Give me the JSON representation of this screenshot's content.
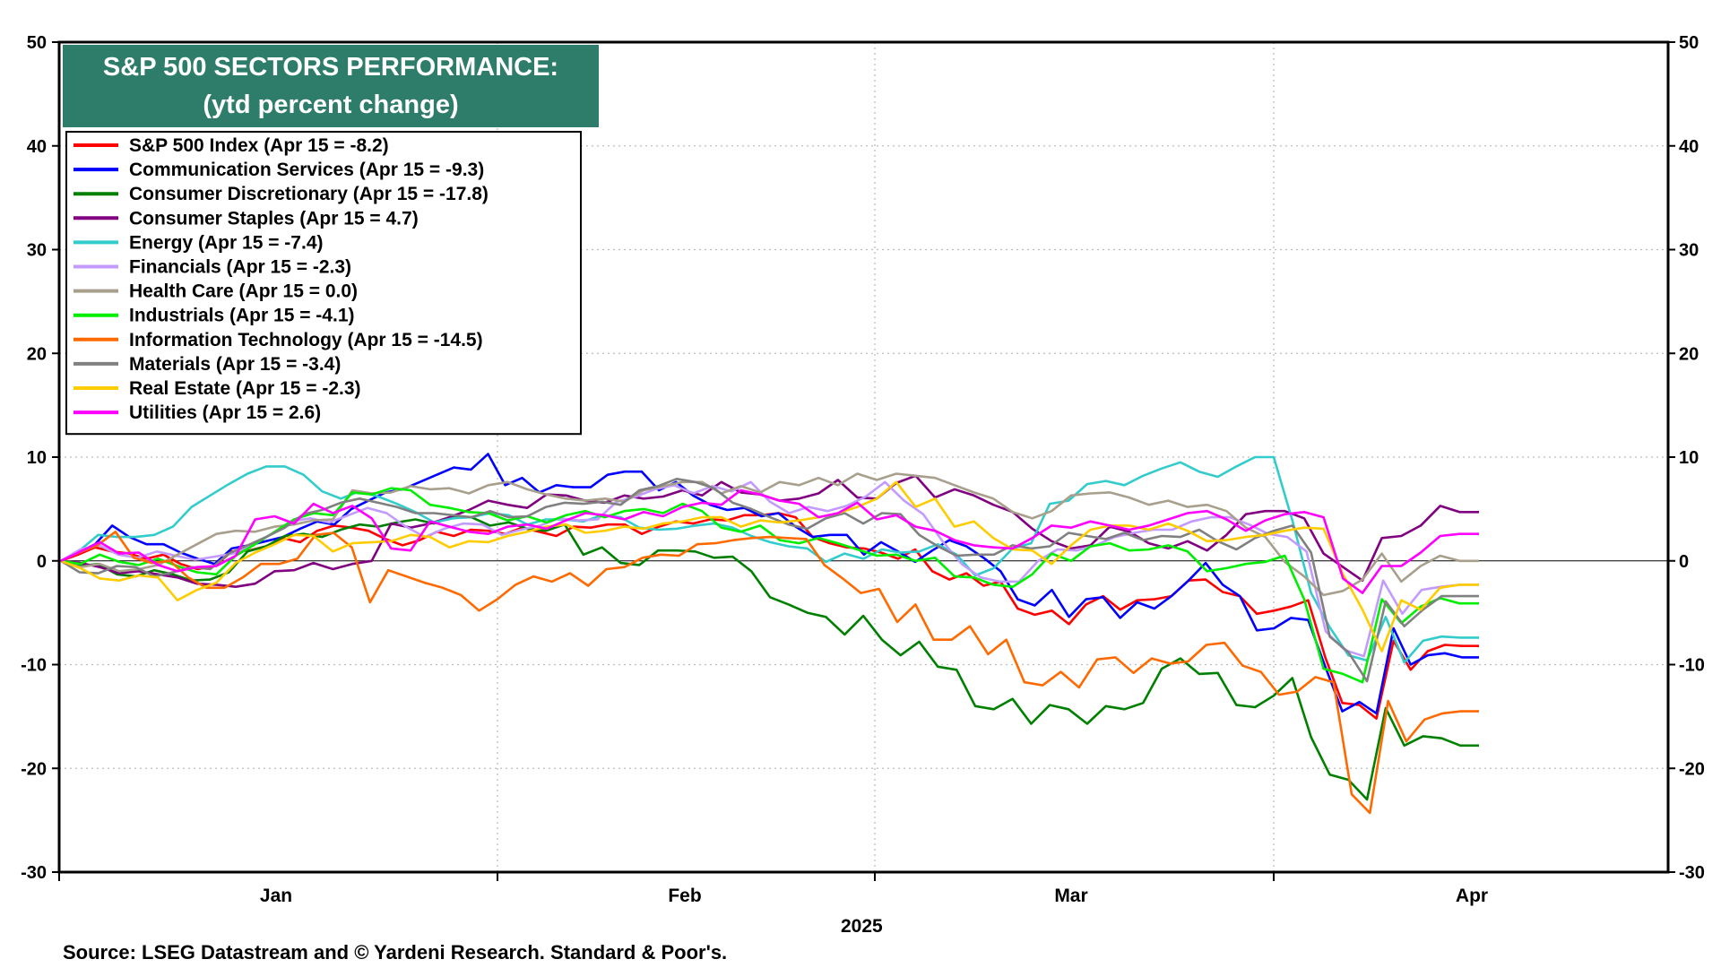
{
  "chart_data": {
    "type": "line",
    "title_line1": "S&P 500 SECTORS PERFORMANCE:",
    "title_line2": "(ytd percent change)",
    "source": "Source: LSEG Datastream and © Yardeni Research. Standard & Poor's.",
    "xlabel": "2025",
    "month_labels": [
      "Jan",
      "Feb",
      "Mar",
      "Apr"
    ],
    "ylim": [
      -30,
      50
    ],
    "yticks": [
      -30,
      -20,
      -10,
      0,
      10,
      20,
      30,
      40,
      50
    ],
    "grid": true,
    "legend_position": "top-left",
    "zero_line": true,
    "series": [
      {
        "name": "S&P 500 Index (Apr 15 = -8.2)",
        "color": "#ff0000",
        "values": [
          0,
          0.6,
          1.3,
          0.9,
          0.7,
          0.2,
          0.6,
          -0.3,
          -0.8,
          -0.5,
          0.9,
          1.0,
          1.4,
          2.2,
          1.8,
          2.9,
          3.4,
          3.2,
          2.9,
          2.1,
          1.5,
          2.0,
          2.8,
          2.4,
          3.0,
          2.9,
          2.6,
          3.2,
          2.8,
          2.4,
          3.3,
          3.2,
          3.5,
          3.5,
          2.6,
          3.3,
          3.8,
          3.6,
          4.0,
          3.9,
          4.4,
          4.4,
          4.6,
          4.2,
          2.3,
          1.7,
          1.3,
          1.2,
          0.8,
          0.2,
          1.1,
          -1.0,
          -1.8,
          -1.2,
          -2.4,
          -2.0,
          -4.6,
          -5.2,
          -4.8,
          -6.1,
          -4.2,
          -3.4,
          -4.7,
          -3.8,
          -3.7,
          -3.4,
          -1.9,
          -1.8,
          -3.0,
          -3.4,
          -5.1,
          -4.8,
          -4.4,
          -3.8,
          -9.3,
          -13.7,
          -13.9,
          -15.2,
          -7.7,
          -10.5,
          -8.7,
          -8.1,
          -8.2,
          -8.2
        ]
      },
      {
        "name": "Communication Services (Apr 15 = -9.3)",
        "color": "#0000ff",
        "values": [
          0,
          0.8,
          1.6,
          3.4,
          2.3,
          1.6,
          1.6,
          0.8,
          0.2,
          -0.3,
          1.2,
          1.5,
          1.9,
          2.3,
          3.1,
          3.8,
          3.5,
          5.0,
          5.8,
          6.6,
          6.9,
          7.6,
          8.3,
          9.0,
          8.8,
          10.3,
          7.3,
          8.0,
          6.6,
          7.3,
          7.1,
          7.1,
          8.3,
          8.6,
          8.6,
          6.8,
          7.6,
          6.3,
          5.4,
          4.9,
          5.1,
          4.3,
          4.6,
          3.3,
          2.3,
          2.5,
          2.5,
          0.6,
          1.8,
          0.9,
          -0.1,
          1.0,
          2.0,
          1.4,
          0.3,
          -1.0,
          -3.7,
          -4.3,
          -2.8,
          -5.4,
          -3.7,
          -3.5,
          -5.5,
          -4.0,
          -4.6,
          -3.4,
          -1.9,
          -0.2,
          -2.3,
          -3.4,
          -6.7,
          -6.5,
          -5.5,
          -5.7,
          -10.2,
          -14.5,
          -13.6,
          -14.7,
          -6.5,
          -10.0,
          -9.1,
          -8.9,
          -9.3,
          -9.3
        ]
      },
      {
        "name": "Consumer Discretionary (Apr 15 = -17.8)",
        "color": "#008000",
        "values": [
          0,
          -0.5,
          -0.3,
          -1.3,
          -1.5,
          -0.9,
          -1.3,
          -1.9,
          -1.8,
          -1.1,
          0.9,
          1.4,
          2.4,
          2.6,
          2.3,
          3.0,
          3.5,
          3.3,
          3.7,
          4.0,
          3.6,
          4.3,
          4.2,
          3.4,
          3.7,
          3.1,
          2.9,
          3.5,
          0.6,
          1.3,
          -0.2,
          -0.4,
          1.0,
          1.0,
          0.9,
          0.3,
          0.4,
          -1.0,
          -3.5,
          -4.2,
          -5.0,
          -5.4,
          -7.1,
          -5.3,
          -7.6,
          -9.1,
          -7.8,
          -10.2,
          -10.5,
          -14.0,
          -14.3,
          -13.3,
          -15.7,
          -13.9,
          -14.3,
          -15.7,
          -14.0,
          -14.3,
          -13.7,
          -10.4,
          -9.4,
          -10.9,
          -10.8,
          -13.9,
          -14.1,
          -13.0,
          -11.3,
          -17.0,
          -20.6,
          -21.1,
          -23.0,
          -14.2,
          -17.8,
          -16.9,
          -17.1,
          -17.8,
          -17.8
        ]
      },
      {
        "name": "Consumer Staples (Apr 15 = 4.7)",
        "color": "#800080",
        "values": [
          0,
          -0.2,
          -0.6,
          -1.2,
          -1.0,
          -1.3,
          -1.6,
          -2.2,
          -2.3,
          -2.5,
          -2.2,
          -1.0,
          -0.9,
          -0.2,
          -0.8,
          -0.3,
          0.0,
          3.6,
          3.2,
          3.6,
          4.2,
          4.9,
          5.8,
          5.4,
          5.1,
          6.4,
          6.3,
          5.8,
          5.6,
          6.3,
          6.0,
          6.2,
          6.8,
          6.3,
          7.6,
          6.6,
          6.4,
          5.8,
          6.0,
          6.5,
          7.8,
          6.1,
          6.0,
          7.5,
          8.2,
          6.1,
          6.9,
          6.3,
          5.4,
          4.7,
          3.1,
          1.9,
          1.2,
          1.5,
          3.3,
          2.8,
          1.7,
          1.2,
          1.9,
          1.0,
          2.5,
          4.5,
          4.8,
          4.8,
          4.1,
          0.7,
          -0.6,
          -1.9,
          2.2,
          2.4,
          3.4,
          5.3,
          4.7,
          4.7
        ]
      },
      {
        "name": "Energy (Apr 15 = -7.4)",
        "color": "#33cccc",
        "values": [
          0,
          1.0,
          2.5,
          2.3,
          2.3,
          2.5,
          3.3,
          5.2,
          6.3,
          7.4,
          8.4,
          9.1,
          9.1,
          8.3,
          6.7,
          6.0,
          6.7,
          6.2,
          5.5,
          4.7,
          3.7,
          4.1,
          4.2,
          4.6,
          4.4,
          3.5,
          4.0,
          4.0,
          3.8,
          4.4,
          4.2,
          3.2,
          3.0,
          3.1,
          3.4,
          3.6,
          3.2,
          2.4,
          1.8,
          1.4,
          1.2,
          -0.1,
          0.7,
          0.2,
          1.1,
          0.8,
          0.9,
          1.6,
          0.6,
          -1.4,
          -0.7,
          1.2,
          1.7,
          5.5,
          5.8,
          7.4,
          7.7,
          7.3,
          8.2,
          8.9,
          9.5,
          8.6,
          8.1,
          9.1,
          10.0,
          10.0,
          3.9,
          -3.1,
          -6.4,
          -9.1,
          -9.6,
          -5.4,
          -9.8,
          -7.7,
          -7.3,
          -7.4,
          -7.4
        ]
      },
      {
        "name": "Financials (Apr 15 = -2.3)",
        "color": "#c39bff",
        "values": [
          0,
          1.1,
          1.5,
          0.6,
          0.3,
          0.9,
          0.5,
          0.1,
          0.4,
          0.7,
          1.6,
          2.6,
          3.8,
          4.1,
          3.7,
          4.4,
          5.1,
          4.6,
          3.3,
          2.3,
          3.1,
          3.6,
          3.5,
          2.5,
          3.0,
          3.4,
          4.1,
          3.9,
          4.0,
          5.7,
          6.2,
          6.9,
          7.3,
          6.5,
          7.2,
          6.7,
          7.6,
          5.7,
          4.6,
          5.2,
          4.8,
          5.3,
          6.2,
          7.6,
          5.8,
          4.5,
          1.9,
          -0.3,
          -1.6,
          -2.0,
          -2.0,
          0.0,
          1.1,
          1.0,
          1.5,
          2.3,
          2.7,
          3.0,
          3.0,
          3.8,
          4.2,
          4.2,
          3.5,
          2.6,
          2.3,
          0.9,
          -6.8,
          -8.6,
          -9.2,
          -1.9,
          -5.1,
          -2.8,
          -2.5,
          -2.3,
          -2.3
        ]
      },
      {
        "name": "Health Care (Apr 15 = 0.0)",
        "color": "#a89f8c",
        "values": [
          0,
          -0.6,
          -0.3,
          -1.0,
          -0.8,
          -0.4,
          0.6,
          1.6,
          2.6,
          2.9,
          2.8,
          3.3,
          3.5,
          3.9,
          4.0,
          6.8,
          6.5,
          6.6,
          7.2,
          6.9,
          7.0,
          6.5,
          7.3,
          7.6,
          6.9,
          6.4,
          6.0,
          5.8,
          6.0,
          5.7,
          6.8,
          7.2,
          7.6,
          7.6,
          6.5,
          7.2,
          6.6,
          7.6,
          7.3,
          8.0,
          7.3,
          8.4,
          7.8,
          8.4,
          8.2,
          8.0,
          7.3,
          6.6,
          6.0,
          4.7,
          4.1,
          4.8,
          6.3,
          6.5,
          6.6,
          6.1,
          5.4,
          5.8,
          5.2,
          5.4,
          4.8,
          3.2,
          2.3,
          -0.1,
          -1.5,
          -3.3,
          -2.9,
          -1.8,
          0.7,
          -2.0,
          -0.5,
          0.5,
          0.0,
          0.0
        ]
      },
      {
        "name": "Industrials (Apr 15 = -4.1)",
        "color": "#00ee00",
        "values": [
          0,
          -0.3,
          0.6,
          -0.1,
          -0.4,
          0.2,
          -0.5,
          -1.1,
          -1.3,
          0.5,
          1.6,
          2.8,
          4.0,
          4.6,
          4.4,
          6.6,
          6.4,
          7.0,
          6.8,
          5.4,
          5.1,
          4.7,
          4.6,
          3.9,
          4.3,
          3.7,
          4.4,
          4.8,
          4.2,
          4.8,
          5.0,
          4.6,
          5.5,
          4.8,
          3.2,
          2.8,
          3.4,
          2.0,
          1.7,
          2.2,
          1.7,
          1.1,
          0.5,
          0.6,
          0.0,
          0.3,
          -1.5,
          -1.6,
          -2.3,
          -2.5,
          -1.3,
          0.7,
          0.0,
          1.4,
          1.7,
          1.0,
          1.1,
          1.5,
          0.9,
          -1.0,
          -0.7,
          -0.3,
          -0.1,
          0.5,
          -3.7,
          -10.4,
          -10.9,
          -11.7,
          -3.7,
          -6.0,
          -4.4,
          -3.6,
          -4.1,
          -4.1
        ]
      },
      {
        "name": "Information Technology (Apr 15 = -14.5)",
        "color": "#ff6a00",
        "values": [
          0,
          0.8,
          1.5,
          2.8,
          0.3,
          -0.2,
          0.0,
          -1.6,
          -2.6,
          -2.6,
          -1.6,
          -0.3,
          -0.3,
          0.2,
          2.5,
          2.7,
          1.3,
          -4.0,
          -0.9,
          -1.5,
          -2.1,
          -2.6,
          -3.3,
          -4.8,
          -3.7,
          -2.3,
          -1.5,
          -2.0,
          -1.2,
          -2.4,
          -0.8,
          -0.6,
          0.3,
          0.6,
          0.5,
          1.6,
          1.7,
          2.0,
          2.2,
          2.3,
          2.2,
          2.1,
          -0.4,
          -1.7,
          -3.1,
          -2.7,
          -5.9,
          -4.2,
          -7.6,
          -7.6,
          -6.3,
          -9.0,
          -7.6,
          -11.7,
          -12.0,
          -10.7,
          -12.2,
          -9.5,
          -9.3,
          -10.8,
          -9.4,
          -9.9,
          -9.7,
          -8.1,
          -7.9,
          -10.1,
          -10.7,
          -12.9,
          -12.6,
          -11.2,
          -11.7,
          -22.5,
          -24.3,
          -13.5,
          -17.4,
          -15.3,
          -14.7,
          -14.5,
          -14.5
        ]
      },
      {
        "name": "Materials (Apr 15 = -3.4)",
        "color": "#808080",
        "values": [
          0,
          -1.1,
          -1.2,
          -0.5,
          -0.6,
          -1.5,
          -1.1,
          -0.6,
          -0.8,
          0.7,
          1.5,
          2.3,
          3.2,
          4.5,
          4.9,
          5.6,
          6.0,
          5.6,
          5.2,
          4.6,
          4.6,
          4.4,
          4.2,
          4.8,
          4.2,
          4.3,
          5.2,
          5.6,
          5.5,
          5.7,
          5.4,
          6.8,
          7.2,
          7.9,
          7.6,
          7.0,
          5.6,
          5.0,
          4.2,
          3.5,
          3.1,
          4.1,
          4.6,
          3.6,
          4.6,
          4.5,
          2.5,
          1.4,
          0.5,
          0.6,
          0.6,
          1.5,
          1.2,
          1.4,
          2.7,
          2.4,
          2.1,
          2.7,
          2.0,
          2.4,
          2.3,
          3.0,
          1.9,
          1.1,
          2.2,
          2.9,
          3.4,
          0.8,
          -7.3,
          -8.8,
          -11.6,
          -3.9,
          -6.3,
          -4.7,
          -3.4,
          -3.4,
          -3.4
        ]
      },
      {
        "name": "Real Estate (Apr 15 = -2.3)",
        "color": "#ffcc00",
        "values": [
          0,
          -0.7,
          -1.7,
          -1.9,
          -1.4,
          -1.6,
          -3.8,
          -2.8,
          -2.1,
          -0.2,
          0.8,
          1.6,
          2.5,
          2.4,
          0.9,
          1.7,
          1.8,
          1.9,
          2.5,
          2.3,
          1.3,
          1.9,
          1.8,
          2.4,
          2.8,
          3.3,
          3.5,
          2.7,
          2.9,
          3.3,
          3.1,
          3.6,
          3.8,
          4.2,
          4.2,
          3.3,
          3.9,
          3.7,
          3.9,
          4.2,
          4.6,
          5.2,
          6.0,
          7.6,
          5.2,
          6.0,
          3.3,
          3.8,
          2.2,
          1.1,
          1.0,
          -0.3,
          1.5,
          3.0,
          3.4,
          3.4,
          3.0,
          3.6,
          2.9,
          1.9,
          2.0,
          2.3,
          2.5,
          2.9,
          3.2,
          3.1,
          -1.3,
          -4.7,
          -8.7,
          -3.8,
          -4.7,
          -2.6,
          -2.3,
          -2.3
        ]
      },
      {
        "name": "Utilities (Apr 15 = 2.6)",
        "color": "#ff00ff",
        "values": [
          0,
          0.9,
          1.8,
          0.7,
          0.8,
          -0.4,
          -1.0,
          -0.6,
          -0.5,
          0.5,
          4.0,
          4.3,
          3.6,
          5.5,
          4.6,
          5.3,
          4.1,
          1.2,
          1.0,
          3.8,
          3.3,
          2.8,
          2.6,
          3.3,
          3.5,
          3.1,
          3.9,
          4.6,
          4.4,
          4.0,
          4.7,
          4.3,
          5.2,
          5.6,
          5.4,
          6.8,
          6.4,
          5.8,
          5.5,
          4.2,
          4.6,
          5.6,
          4.0,
          4.4,
          3.3,
          2.9,
          2.0,
          1.5,
          1.3,
          1.2,
          2.2,
          3.4,
          3.2,
          3.8,
          3.4,
          3.0,
          3.4,
          4.0,
          4.6,
          4.8,
          4.0,
          2.9,
          3.9,
          4.5,
          4.7,
          4.2,
          -1.7,
          -3.1,
          -0.5,
          -0.5,
          0.8,
          2.4,
          2.6,
          2.6
        ]
      }
    ]
  }
}
